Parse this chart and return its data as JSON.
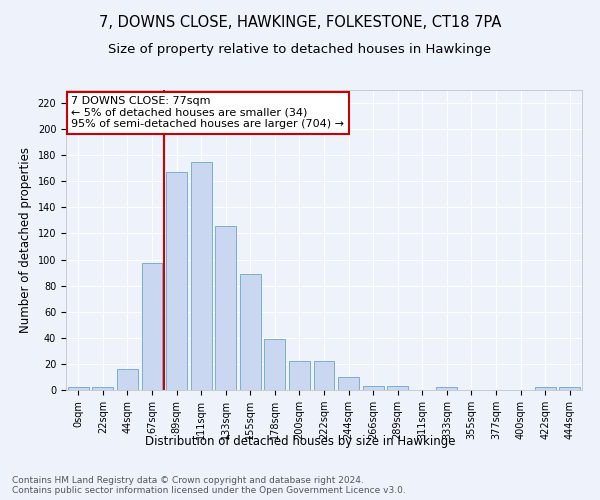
{
  "title": "7, DOWNS CLOSE, HAWKINGE, FOLKESTONE, CT18 7PA",
  "subtitle": "Size of property relative to detached houses in Hawkinge",
  "xlabel": "Distribution of detached houses by size in Hawkinge",
  "ylabel": "Number of detached properties",
  "bar_color": "#c9d8f0",
  "bar_edge_color": "#7aadd6",
  "background_color": "#eef3fb",
  "grid_color": "#ffffff",
  "categories": [
    "0sqm",
    "22sqm",
    "44sqm",
    "67sqm",
    "89sqm",
    "111sqm",
    "133sqm",
    "155sqm",
    "178sqm",
    "200sqm",
    "222sqm",
    "244sqm",
    "266sqm",
    "289sqm",
    "311sqm",
    "333sqm",
    "355sqm",
    "377sqm",
    "400sqm",
    "422sqm",
    "444sqm"
  ],
  "values": [
    2,
    2,
    16,
    97,
    167,
    175,
    126,
    89,
    39,
    22,
    22,
    10,
    3,
    3,
    0,
    2,
    0,
    0,
    0,
    2,
    2
  ],
  "vline_x_index": 3,
  "vline_color": "#cc0000",
  "annotation_line1": "7 DOWNS CLOSE: 77sqm",
  "annotation_line2": "← 5% of detached houses are smaller (34)",
  "annotation_line3": "95% of semi-detached houses are larger (704) →",
  "annotation_box_color": "#ffffff",
  "annotation_box_edge_color": "#cc0000",
  "ylim": [
    0,
    230
  ],
  "yticks": [
    0,
    20,
    40,
    60,
    80,
    100,
    120,
    140,
    160,
    180,
    200,
    220
  ],
  "footnote": "Contains HM Land Registry data © Crown copyright and database right 2024.\nContains public sector information licensed under the Open Government Licence v3.0.",
  "title_fontsize": 10.5,
  "subtitle_fontsize": 9.5,
  "xlabel_fontsize": 8.5,
  "ylabel_fontsize": 8.5,
  "tick_fontsize": 7,
  "annotation_fontsize": 8,
  "footnote_fontsize": 6.5
}
